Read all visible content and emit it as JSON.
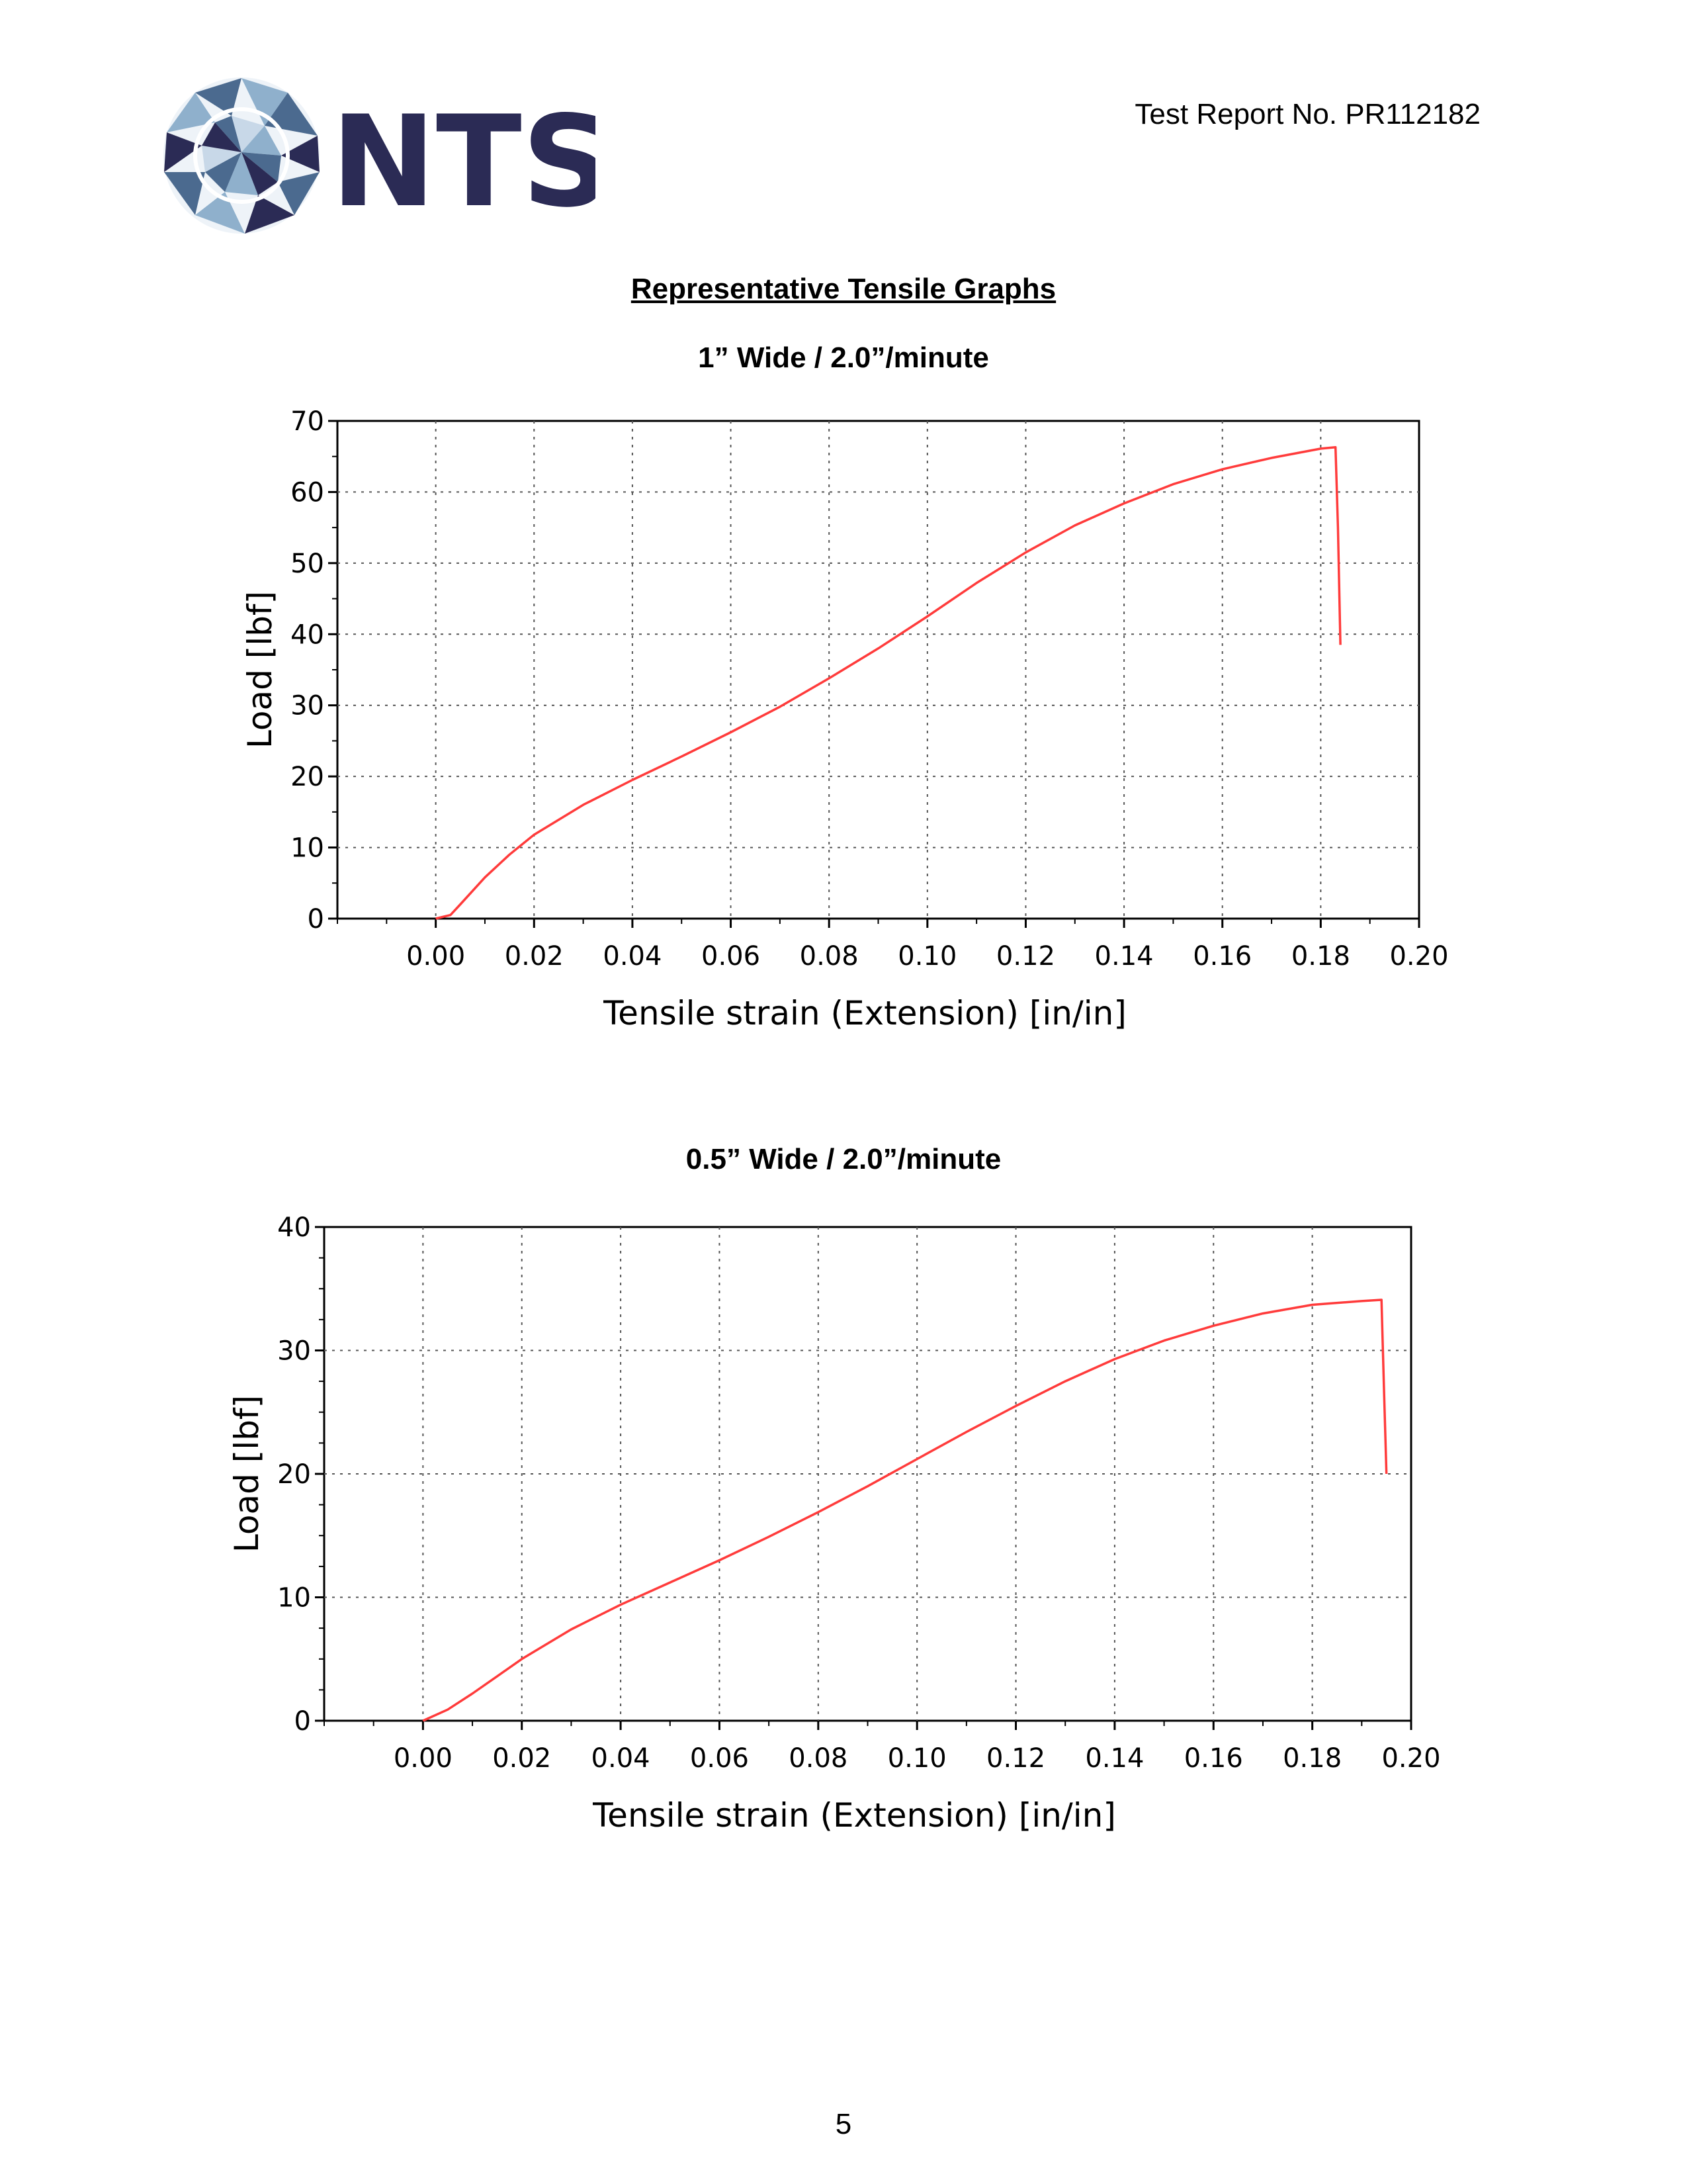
{
  "header": {
    "logo_text": "NTS",
    "report_number": "Test Report No. PR112182"
  },
  "section_title": "Representative Tensile Graphs",
  "footer": {
    "page_number": "5"
  },
  "colors": {
    "curve": "#ff3b3b",
    "grid": "#555555",
    "logo_dark": "#2b2b55",
    "logo_mid": "#4b6a8f",
    "logo_light": "#8fb0cc"
  },
  "chart_data": [
    {
      "type": "line",
      "title": "1” Wide / 2.0”/minute",
      "xlabel": "Tensile strain (Extension) [in/in]",
      "ylabel": "Load [lbf]",
      "xlim": [
        -0.02,
        0.2
      ],
      "ylim": [
        0,
        70
      ],
      "x_ticks": [
        "0.00",
        "0.02",
        "0.04",
        "0.06",
        "0.08",
        "0.10",
        "0.12",
        "0.14",
        "0.16",
        "0.18",
        "0.20"
      ],
      "y_ticks": [
        "0",
        "10",
        "20",
        "30",
        "40",
        "50",
        "60",
        "70"
      ],
      "grid": true,
      "series": [
        {
          "x": [
            0.0,
            0.003,
            0.005,
            0.01,
            0.015,
            0.02,
            0.03,
            0.04,
            0.05,
            0.06,
            0.07,
            0.08,
            0.09,
            0.1,
            0.11,
            0.12,
            0.13,
            0.14,
            0.15,
            0.16,
            0.17,
            0.18,
            0.183,
            0.1835,
            0.184
          ],
          "y": [
            0,
            0.5,
            2.0,
            5.8,
            9.0,
            11.8,
            16.0,
            19.5,
            22.8,
            26.2,
            29.8,
            33.8,
            38.0,
            42.5,
            47.2,
            51.5,
            55.3,
            58.4,
            61.1,
            63.2,
            64.8,
            66.1,
            66.3,
            55.0,
            38.5
          ]
        }
      ]
    },
    {
      "type": "line",
      "title": "0.5” Wide / 2.0”/minute",
      "xlabel": "Tensile strain (Extension) [in/in]",
      "ylabel": "Load [lbf]",
      "xlim": [
        -0.02,
        0.2
      ],
      "ylim": [
        0,
        40
      ],
      "x_ticks": [
        "0.00",
        "0.02",
        "0.04",
        "0.06",
        "0.08",
        "0.10",
        "0.12",
        "0.14",
        "0.16",
        "0.18",
        "0.20"
      ],
      "y_ticks": [
        "0",
        "10",
        "20",
        "30",
        "40"
      ],
      "grid": true,
      "series": [
        {
          "x": [
            0.0,
            0.005,
            0.01,
            0.015,
            0.02,
            0.03,
            0.04,
            0.05,
            0.06,
            0.07,
            0.08,
            0.09,
            0.1,
            0.11,
            0.12,
            0.13,
            0.14,
            0.15,
            0.16,
            0.17,
            0.18,
            0.19,
            0.194,
            0.1945,
            0.195
          ],
          "y": [
            0,
            0.9,
            2.2,
            3.6,
            5.0,
            7.4,
            9.4,
            11.2,
            13.0,
            14.9,
            16.9,
            19.0,
            21.2,
            23.4,
            25.5,
            27.5,
            29.3,
            30.8,
            32.0,
            33.0,
            33.7,
            34.0,
            34.1,
            27.0,
            20.0
          ]
        }
      ]
    }
  ]
}
